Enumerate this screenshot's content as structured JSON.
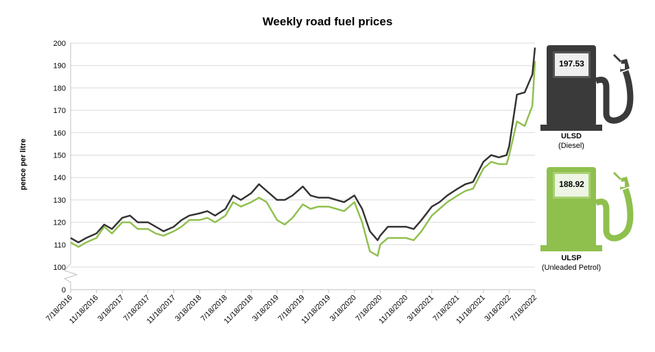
{
  "title": "Weekly road fuel prices",
  "ylabel": "pence per litre",
  "colors": {
    "diesel": "#333333",
    "petrol": "#8fc04e",
    "grid": "#d9d9d9",
    "axis": "#bfbfbf"
  },
  "pumps": {
    "diesel": {
      "value": "197.53",
      "name": "ULSD",
      "subtitle": "(Diesel)",
      "color": "#3a3a3a"
    },
    "petrol": {
      "value": "188.92",
      "name": "ULSP",
      "subtitle": "(Unleaded Petrol)",
      "color": "#8fc04e"
    }
  },
  "chart_data": {
    "type": "line",
    "title": "Weekly road fuel prices",
    "xlabel": "",
    "ylabel": "pence per litre",
    "ylim": [
      100,
      200
    ],
    "y_axis_break": true,
    "yticks": [
      0,
      100,
      110,
      120,
      130,
      140,
      150,
      160,
      170,
      180,
      190,
      200
    ],
    "xticks": [
      "7/18/2016",
      "11/18/2016",
      "3/18/2017",
      "7/18/2017",
      "11/18/2017",
      "3/18/2018",
      "7/18/2018",
      "11/18/2018",
      "3/18/2019",
      "7/18/2019",
      "11/18/2019",
      "3/18/2020",
      "7/18/2020",
      "11/18/2020",
      "3/18/2021",
      "7/18/2021",
      "11/18/2021",
      "3/18/2022",
      "7/18/2022"
    ],
    "grid": true,
    "legend": "pump icons at right",
    "x": [
      0,
      0.3,
      0.6,
      1,
      1.3,
      1.6,
      2,
      2.3,
      2.6,
      3,
      3.3,
      3.6,
      4,
      4.3,
      4.6,
      5,
      5.3,
      5.6,
      6,
      6.3,
      6.6,
      7,
      7.3,
      7.6,
      8,
      8.3,
      8.6,
      9,
      9.3,
      9.6,
      10,
      10.3,
      10.6,
      11,
      11.3,
      11.6,
      11.9,
      12,
      12.3,
      12.6,
      13,
      13.3,
      13.6,
      14,
      14.3,
      14.6,
      15,
      15.3,
      15.6,
      16,
      16.3,
      16.6,
      16.9,
      17,
      17.3,
      17.6,
      17.9,
      18
    ],
    "series": [
      {
        "name": "ULSD (Diesel)",
        "color": "#333333",
        "values": [
          113,
          111,
          113,
          115,
          119,
          117,
          122,
          123,
          120,
          120,
          118,
          116,
          118,
          121,
          123,
          124,
          125,
          123,
          126,
          132,
          130,
          133,
          137,
          134,
          130,
          130,
          132,
          136,
          132,
          131,
          131,
          130,
          129,
          132,
          126,
          116,
          112,
          114,
          118,
          118,
          118,
          117,
          121,
          127,
          129,
          132,
          135,
          137,
          138,
          147,
          150,
          149,
          150,
          154,
          177,
          178,
          186,
          198,
          197.5
        ]
      },
      {
        "name": "ULSP (Unleaded Petrol)",
        "color": "#8fc04e",
        "values": [
          111,
          109,
          111,
          113,
          118,
          115,
          120,
          120,
          117,
          117,
          115,
          114,
          116,
          118,
          121,
          121,
          122,
          120,
          123,
          129,
          127,
          129,
          131,
          129,
          121,
          119,
          122,
          128,
          126,
          127,
          127,
          126,
          125,
          129,
          120,
          107,
          105,
          110,
          113,
          113,
          113,
          112,
          116,
          123,
          126,
          129,
          132,
          134,
          135,
          144,
          147,
          146,
          146,
          150,
          165,
          163,
          172,
          192,
          188.9
        ]
      }
    ]
  }
}
